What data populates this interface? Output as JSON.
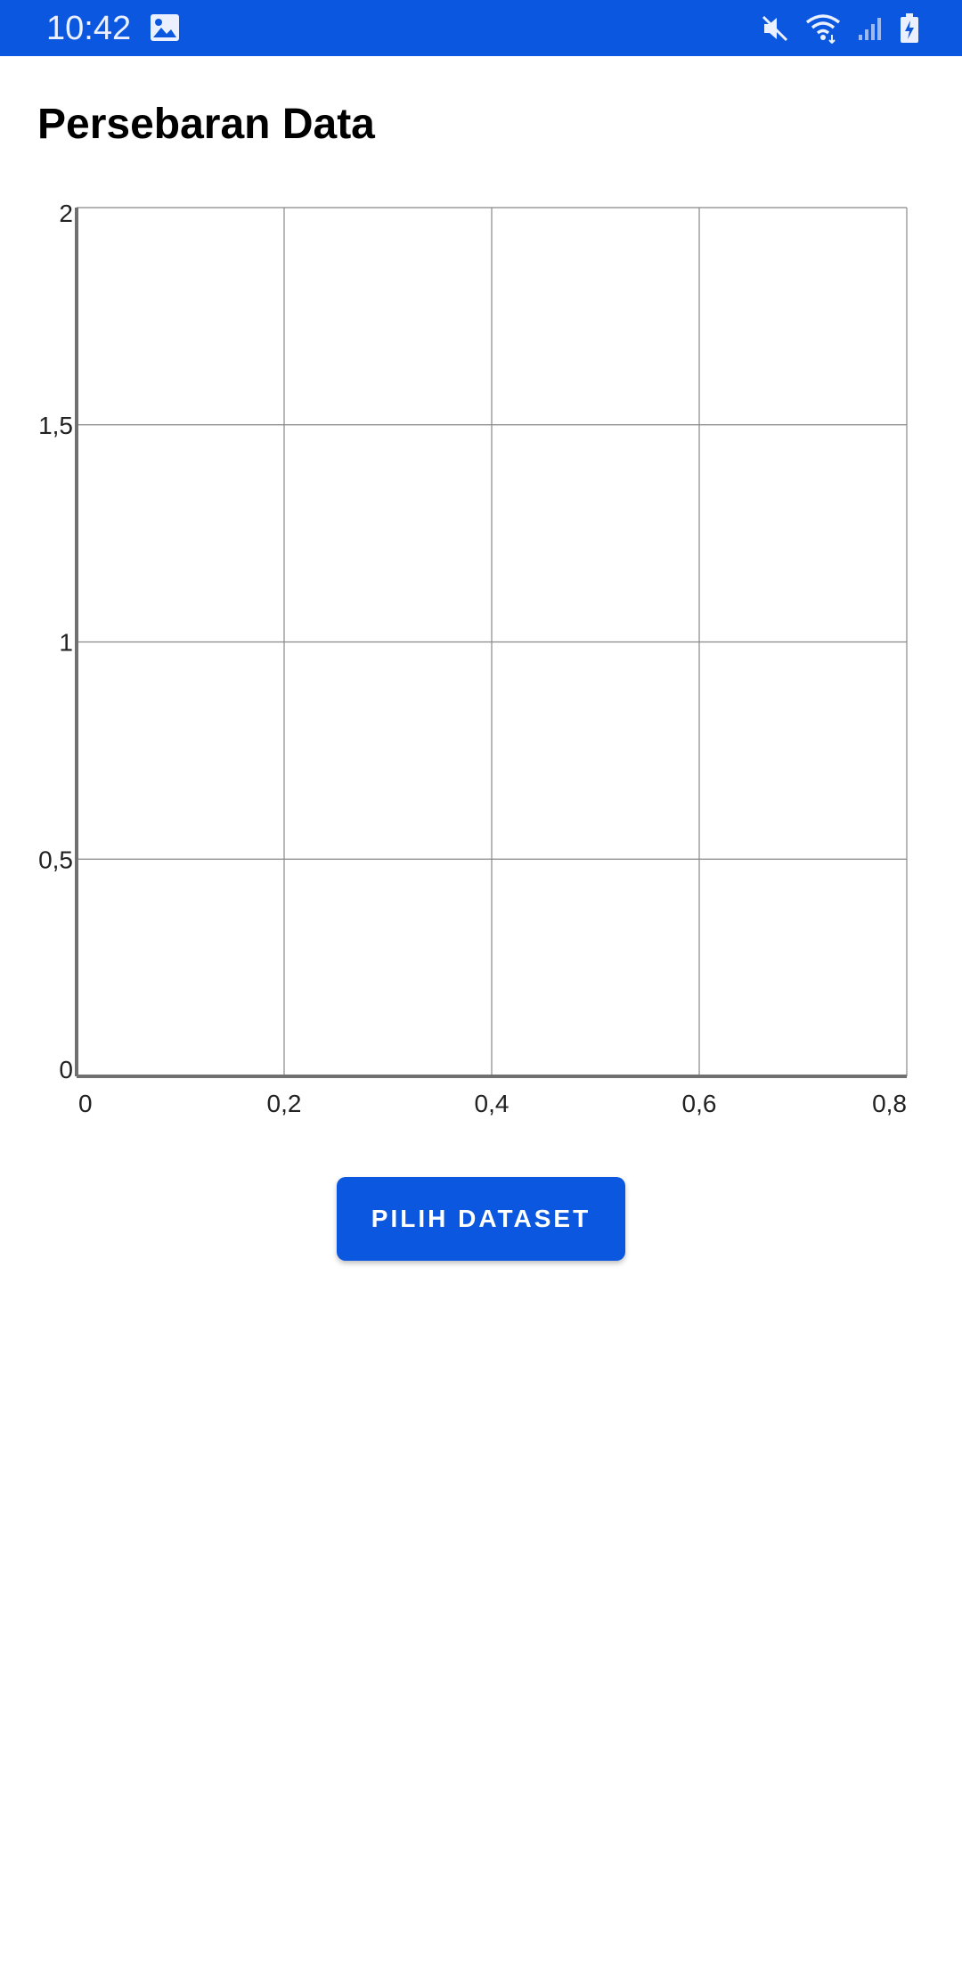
{
  "status_bar": {
    "time": "10:42",
    "color": "#0b57e0",
    "icons": [
      "gallery-icon",
      "mute-icon",
      "wifi-icon",
      "signal-icon",
      "battery-charging-icon"
    ]
  },
  "page": {
    "title": "Persebaran Data"
  },
  "chart_data": {
    "type": "scatter",
    "title": "",
    "xlabel": "",
    "ylabel": "",
    "xlim": [
      0,
      0.8
    ],
    "ylim": [
      0,
      2
    ],
    "x_ticks": [
      "0",
      "0,2",
      "0,4",
      "0,6",
      "0,8"
    ],
    "y_ticks": [
      "0",
      "0,5",
      "1",
      "1,5",
      "2"
    ],
    "grid": true,
    "series": []
  },
  "actions": {
    "choose_dataset_label": "PILIH DATASET",
    "accent_color": "#0b57e0"
  }
}
